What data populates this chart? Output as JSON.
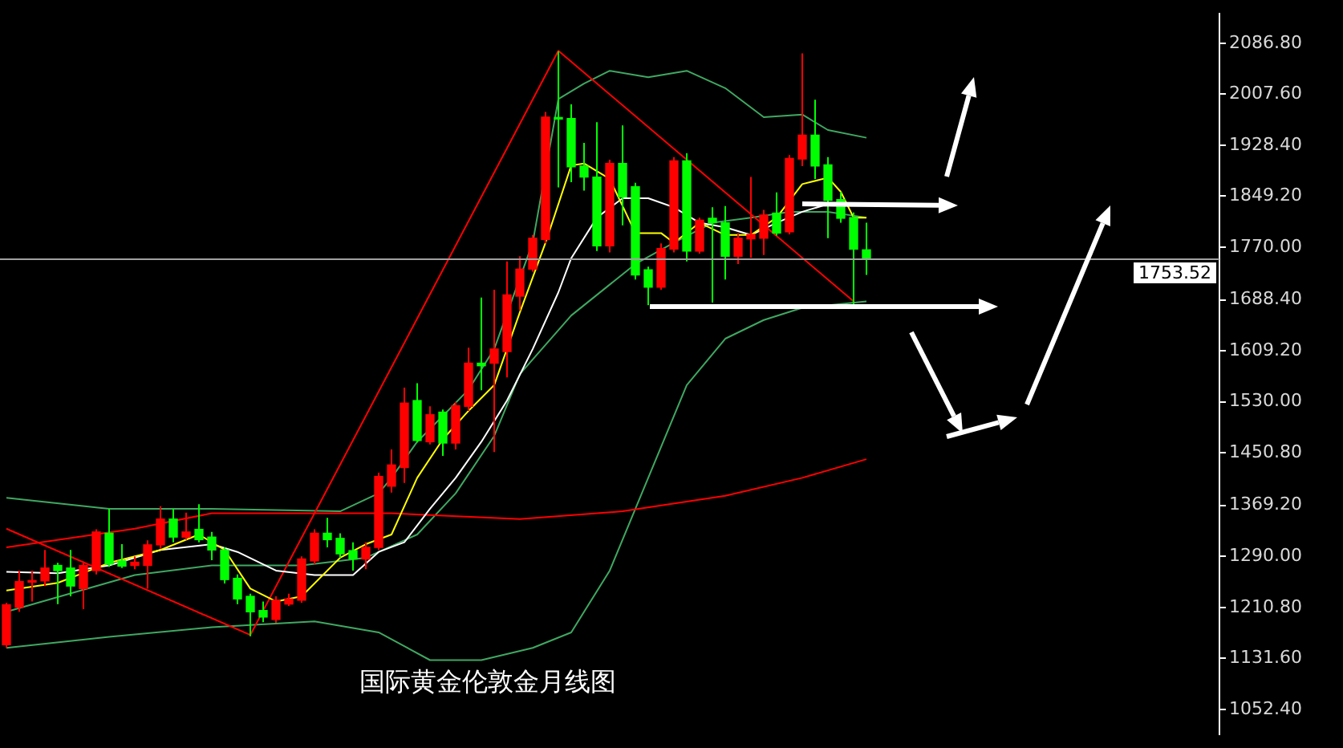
{
  "chart_data": {
    "type": "candlestick",
    "annotations": [
      "国际黄金伦敦金月线图"
    ],
    "categories": [
      null,
      null,
      null,
      null,
      null,
      null,
      null,
      null,
      null,
      null,
      null,
      null,
      null,
      null,
      null,
      null,
      null,
      null,
      null,
      null,
      null,
      null,
      null,
      null,
      null,
      null,
      null,
      null,
      null,
      null,
      null,
      null,
      null,
      null,
      null,
      null,
      null,
      null,
      null,
      null,
      null,
      null,
      null,
      null,
      null,
      null,
      null,
      null,
      null,
      null,
      null,
      null,
      null,
      null,
      null,
      null,
      null,
      null,
      null,
      null,
      null,
      null,
      null,
      null,
      null,
      null,
      null,
      null,
      null,
      null,
      null,
      null,
      null,
      null,
      null,
      null,
      null,
      null,
      null,
      null,
      null,
      null,
      null,
      null,
      null,
      null,
      null,
      null,
      null,
      null,
      null,
      null,
      null,
      null,
      null
    ],
    "ohlc": [
      [
        1153,
        1218,
        1148,
        1215
      ],
      [
        1211,
        1268,
        1204,
        1251
      ],
      [
        1250,
        1268,
        1220,
        1252
      ],
      [
        1252,
        1300,
        1244,
        1272
      ],
      [
        1276,
        1280,
        1216,
        1268
      ],
      [
        1272,
        1300,
        1228,
        1244
      ],
      [
        1240,
        1282,
        1208,
        1276
      ],
      [
        1268,
        1332,
        1262,
        1328
      ],
      [
        1326,
        1364,
        1274,
        1278
      ],
      [
        1283,
        1309,
        1272,
        1275
      ],
      [
        1276,
        1290,
        1270,
        1281
      ],
      [
        1276,
        1315,
        1240,
        1308
      ],
      [
        1308,
        1368,
        1302,
        1348
      ],
      [
        1348,
        1364,
        1312,
        1320
      ],
      [
        1320,
        1358,
        1316,
        1328
      ],
      [
        1332,
        1371,
        1312,
        1316
      ],
      [
        1320,
        1328,
        1284,
        1300
      ],
      [
        1300,
        1304,
        1248,
        1254
      ],
      [
        1256,
        1262,
        1216,
        1224
      ],
      [
        1228,
        1232,
        1166,
        1204
      ],
      [
        1206,
        1220,
        1188,
        1196
      ],
      [
        1192,
        1228,
        1187,
        1222
      ],
      [
        1216,
        1232,
        1213,
        1224
      ],
      [
        1222,
        1290,
        1218,
        1286
      ],
      [
        1283,
        1332,
        1278,
        1326
      ],
      [
        1326,
        1350,
        1304,
        1316
      ],
      [
        1318,
        1326,
        1288,
        1294
      ],
      [
        1299,
        1312,
        1268,
        1286
      ],
      [
        1286,
        1312,
        1270,
        1304
      ],
      [
        1304,
        1420,
        1300,
        1414
      ],
      [
        1399,
        1456,
        1389,
        1432
      ],
      [
        1428,
        1552,
        1404,
        1528
      ],
      [
        1532,
        1559,
        1467,
        1470
      ],
      [
        1468,
        1523,
        1464,
        1510
      ],
      [
        1514,
        1518,
        1446,
        1466
      ],
      [
        1466,
        1530,
        1456,
        1524
      ],
      [
        1523,
        1614,
        1516,
        1590
      ],
      [
        1590,
        1692,
        1548,
        1586
      ],
      [
        1590,
        1704,
        1452,
        1612
      ],
      [
        1608,
        1748,
        1568,
        1696
      ],
      [
        1694,
        1756,
        1672,
        1736
      ],
      [
        1736,
        1789,
        1732,
        1784
      ],
      [
        1782,
        1980,
        1776,
        1972
      ],
      [
        1971,
        2074,
        1863,
        1969
      ],
      [
        1970,
        1992,
        1871,
        1895
      ],
      [
        1896,
        1932,
        1858,
        1879
      ],
      [
        1879,
        1964,
        1764,
        1772
      ],
      [
        1772,
        1906,
        1762,
        1900
      ],
      [
        1900,
        1959,
        1804,
        1848
      ],
      [
        1864,
        1870,
        1720,
        1727
      ],
      [
        1735,
        1740,
        1680,
        1708
      ],
      [
        1708,
        1776,
        1704,
        1768
      ],
      [
        1767,
        1910,
        1762,
        1904
      ],
      [
        1904,
        1916,
        1748,
        1764
      ],
      [
        1764,
        1816,
        1760,
        1812
      ],
      [
        1815,
        1832,
        1684,
        1808
      ],
      [
        1808,
        1834,
        1720,
        1756
      ],
      [
        1756,
        1792,
        1744,
        1784
      ],
      [
        1783,
        1879,
        1754,
        1790
      ],
      [
        1784,
        1828,
        1758,
        1820
      ],
      [
        1823,
        1855,
        1788,
        1792
      ],
      [
        1794,
        1913,
        1790,
        1908
      ],
      [
        1907,
        2071,
        1896,
        1944
      ],
      [
        1944,
        1999,
        1876,
        1896
      ],
      [
        1898,
        1910,
        1784,
        1843
      ],
      [
        1844,
        1856,
        1808,
        1815
      ],
      [
        1816,
        1824,
        1680,
        1767
      ],
      [
        1766,
        1808,
        1727,
        1753.52
      ],
      null,
      null,
      null,
      null,
      null,
      null,
      null,
      null,
      null,
      null,
      null,
      null,
      null,
      null,
      null,
      null,
      null,
      null,
      null,
      null,
      null,
      null,
      null,
      null,
      null,
      null,
      null
    ],
    "colors": [
      "#ff0000",
      "#ff0000",
      "#ff0000",
      "#ff0000",
      "#00ff00",
      "#00ff00",
      "#ff0000",
      "#ff0000",
      "#00ff00",
      "#00ff00",
      "#ff0000",
      "#ff0000",
      "#ff0000",
      "#00ff00",
      "#ff0000",
      "#00ff00",
      "#00ff00",
      "#00ff00",
      "#00ff00",
      "#00ff00",
      "#00ff00",
      "#ff0000",
      "#ff0000",
      "#ff0000",
      "#ff0000",
      "#00ff00",
      "#00ff00",
      "#00ff00",
      "#ff0000",
      "#ff0000",
      "#ff0000",
      "#ff0000",
      "#00ff00",
      "#ff0000",
      "#00ff00",
      "#ff0000",
      "#ff0000",
      "#00ff00",
      "#ff0000",
      "#ff0000",
      "#ff0000",
      "#ff0000",
      "#ff0000",
      "#00ff00",
      "#00ff00",
      "#00ff00",
      "#00ff00",
      "#ff0000",
      "#00ff00",
      "#00ff00",
      "#00ff00",
      "#ff0000",
      "#ff0000",
      "#00ff00",
      "#ff0000",
      "#00ff00",
      "#00ff00",
      "#ff0000",
      "#ff0000",
      "#ff0000",
      "#00ff00",
      "#ff0000",
      "#ff0000",
      "#00ff00",
      "#00ff00",
      "#00ff00",
      "#00ff00",
      "#00ff00",
      null,
      null,
      null,
      null,
      null,
      null,
      null,
      null,
      null,
      null,
      null,
      null,
      null,
      null,
      null,
      null,
      null,
      null,
      null,
      null,
      null,
      null,
      null,
      null,
      null,
      null,
      null
    ],
    "series": [
      {
        "type": "line",
        "color": "#ffff00",
        "values": [
          1237,
          null,
          null,
          null,
          1249,
          null,
          null,
          null,
          1280,
          null,
          null,
          null,
          1300,
          null,
          null,
          1324,
          null,
          1300,
          null,
          1240,
          null,
          1220,
          null,
          1228,
          null,
          null,
          1288,
          null,
          1309,
          null,
          1324,
          null,
          1412,
          null,
          1472,
          null,
          1516,
          null,
          1556,
          null,
          1669,
          null,
          1777,
          null,
          1897,
          1900,
          null,
          1876,
          null,
          1792,
          null,
          1792,
          1777,
          null,
          1808,
          null,
          1789,
          null,
          1789,
          null,
          1816,
          null,
          1868,
          null,
          1878,
          1856,
          1816,
          1816,
          null,
          null,
          null,
          null,
          null,
          null,
          null,
          null,
          null,
          null,
          null,
          null,
          null,
          null,
          null,
          null,
          null,
          null,
          null,
          null,
          null,
          null,
          null,
          null,
          null,
          null,
          null
        ]
      },
      {
        "type": "line",
        "color": "#ffffff",
        "values": [
          1266,
          null,
          null,
          null,
          1264,
          null,
          null,
          null,
          1276,
          null,
          null,
          null,
          1300,
          null,
          null,
          null,
          1309,
          null,
          1297,
          null,
          null,
          1268,
          null,
          null,
          1261,
          null,
          null,
          1261,
          null,
          1297,
          null,
          1312,
          null,
          1364,
          null,
          1412,
          null,
          1468,
          null,
          1532,
          null,
          1612,
          null,
          1700,
          1753,
          null,
          1816,
          null,
          1846,
          null,
          1846,
          null,
          1832,
          null,
          1808,
          null,
          1801,
          null,
          1789,
          null,
          1808,
          null,
          1825,
          null,
          1837,
          null,
          1837,
          null,
          null,
          null,
          null,
          null,
          null,
          null,
          null,
          null,
          null,
          null,
          null,
          null,
          null,
          null,
          null,
          null,
          null,
          null,
          null,
          null,
          null,
          null,
          null,
          null,
          null,
          null,
          null
        ]
      },
      {
        "type": "line",
        "color": "#ff0000",
        "values": [
          1304,
          null,
          null,
          null,
          null,
          null,
          null,
          null,
          null,
          null,
          1333,
          null,
          null,
          null,
          null,
          null,
          1357,
          null,
          null,
          null,
          null,
          null,
          null,
          null,
          null,
          null,
          null,
          null,
          null,
          null,
          1357,
          null,
          null,
          null,
          null,
          null,
          null,
          null,
          null,
          null,
          1348,
          null,
          null,
          null,
          null,
          null,
          null,
          null,
          1360,
          null,
          null,
          null,
          null,
          null,
          null,
          null,
          1384,
          null,
          null,
          null,
          null,
          null,
          1412,
          null,
          null,
          null,
          null,
          1441,
          null,
          null,
          null,
          null,
          null,
          null,
          null,
          null,
          null,
          null,
          null,
          null,
          null,
          null,
          null,
          null,
          null,
          null,
          null,
          null,
          null,
          null,
          null,
          null,
          null,
          null,
          null
        ]
      },
      {
        "type": "line",
        "color": "#ff0000",
        "values": [
          1333,
          null,
          null,
          null,
          null,
          null,
          null,
          null,
          null,
          null,
          null,
          null,
          null,
          null,
          null,
          null,
          null,
          null,
          null,
          1168,
          null,
          null,
          null,
          null,
          null,
          null,
          null,
          null,
          null,
          null,
          null,
          null,
          null,
          null,
          null,
          null,
          null,
          null,
          null,
          null,
          null,
          null,
          null,
          2075,
          null,
          null,
          null,
          null,
          null,
          null,
          null,
          null,
          null,
          null,
          null,
          null,
          null,
          null,
          null,
          null,
          null,
          null,
          null,
          null,
          null,
          null,
          1686,
          null,
          null,
          null,
          null,
          null,
          null,
          null,
          null,
          null,
          null,
          null,
          null,
          null,
          null,
          null,
          null,
          null,
          null,
          null,
          null,
          null,
          null,
          null,
          null,
          null,
          null,
          null,
          null
        ]
      },
      {
        "type": "line",
        "color": "#3fa862",
        "values": [
          1381,
          null,
          null,
          null,
          null,
          null,
          null,
          null,
          1364,
          null,
          null,
          null,
          null,
          null,
          null,
          null,
          1364,
          null,
          null,
          null,
          null,
          null,
          null,
          null,
          null,
          null,
          1360,
          null,
          null,
          1388,
          1412,
          null,
          1468,
          null,
          1508,
          null,
          1549,
          null,
          1612,
          null,
          null,
          1777,
          null,
          2000,
          null,
          2024,
          null,
          2044,
          null,
          null,
          2034,
          null,
          null,
          2044,
          null,
          null,
          2017,
          null,
          null,
          1972,
          null,
          null,
          1976,
          null,
          1952,
          null,
          null,
          1940,
          null,
          null,
          null,
          null,
          null,
          null,
          null,
          null,
          null,
          null,
          null,
          null,
          null,
          null,
          null,
          null,
          null,
          null,
          null,
          null,
          null,
          null,
          null,
          null,
          null,
          null,
          null
        ]
      },
      {
        "type": "line",
        "color": "#3fa862",
        "values": [
          1204,
          null,
          null,
          null,
          null,
          null,
          null,
          null,
          null,
          null,
          1261,
          null,
          null,
          null,
          null,
          null,
          1276,
          null,
          null,
          null,
          null,
          null,
          null,
          1276,
          null,
          null,
          null,
          null,
          1288,
          null,
          null,
          null,
          1324,
          null,
          null,
          1388,
          null,
          null,
          1477,
          null,
          1573,
          null,
          null,
          null,
          1664,
          null,
          null,
          null,
          null,
          1744,
          null,
          null,
          1777,
          null,
          null,
          1808,
          null,
          null,
          1816,
          null,
          null,
          1825,
          null,
          null,
          1825,
          null,
          null,
          1816,
          null,
          null,
          null,
          null,
          null,
          null,
          null,
          null,
          null,
          null,
          null,
          null,
          null,
          null,
          null,
          null,
          null,
          null,
          null,
          null,
          null,
          null,
          null,
          null,
          null,
          null,
          null
        ]
      },
      {
        "type": "line",
        "color": "#3fa862",
        "values": [
          1148,
          null,
          null,
          null,
          null,
          null,
          null,
          null,
          1165,
          null,
          null,
          null,
          null,
          null,
          null,
          null,
          1180,
          null,
          null,
          null,
          null,
          null,
          null,
          null,
          1189,
          null,
          null,
          null,
          null,
          1172,
          null,
          null,
          null,
          1129,
          null,
          null,
          null,
          1129,
          null,
          null,
          null,
          1148,
          null,
          null,
          1172,
          null,
          null,
          1268,
          null,
          null,
          1412,
          null,
          null,
          1556,
          null,
          null,
          1628,
          null,
          null,
          1657,
          null,
          null,
          1676,
          null,
          null,
          null,
          null,
          1686,
          null,
          null,
          null,
          null,
          null,
          null,
          null,
          null,
          null,
          null,
          null,
          null,
          null,
          null,
          null,
          null,
          null,
          null,
          null,
          null,
          null,
          null,
          null,
          null,
          null,
          null,
          null
        ]
      }
    ],
    "marker": "none",
    "ylim": [
      1014,
      2132.4
    ],
    "yticks": [
      {
        "value": 1052.4,
        "label": "1052.40"
      },
      {
        "value": 1131.6,
        "label": "1131.60"
      },
      {
        "value": 1210.8,
        "label": "1210.80"
      },
      {
        "value": 1290,
        "label": "1290.00"
      },
      {
        "value": 1369.2,
        "label": "1369.20"
      },
      {
        "value": 1450.8,
        "label": "1450.80"
      },
      {
        "value": 1530,
        "label": "1530.00"
      },
      {
        "value": 1609.2,
        "label": "1609.20"
      },
      {
        "value": 1688.4,
        "label": "1688.40"
      },
      {
        "value": 1770,
        "label": "1770.00"
      },
      {
        "value": 1849.2,
        "label": "1849.20"
      },
      {
        "value": 1928.4,
        "label": "1928.40"
      },
      {
        "value": 2007.6,
        "label": "2007.60"
      },
      {
        "value": 2086.8,
        "label": "2086.80"
      }
    ],
    "ref_lines": [
      {
        "axis": "y",
        "value": 1753.52,
        "label": "1753.52",
        "color": "#a0a0a0"
      }
    ],
    "tick_labels": "y"
  }
}
